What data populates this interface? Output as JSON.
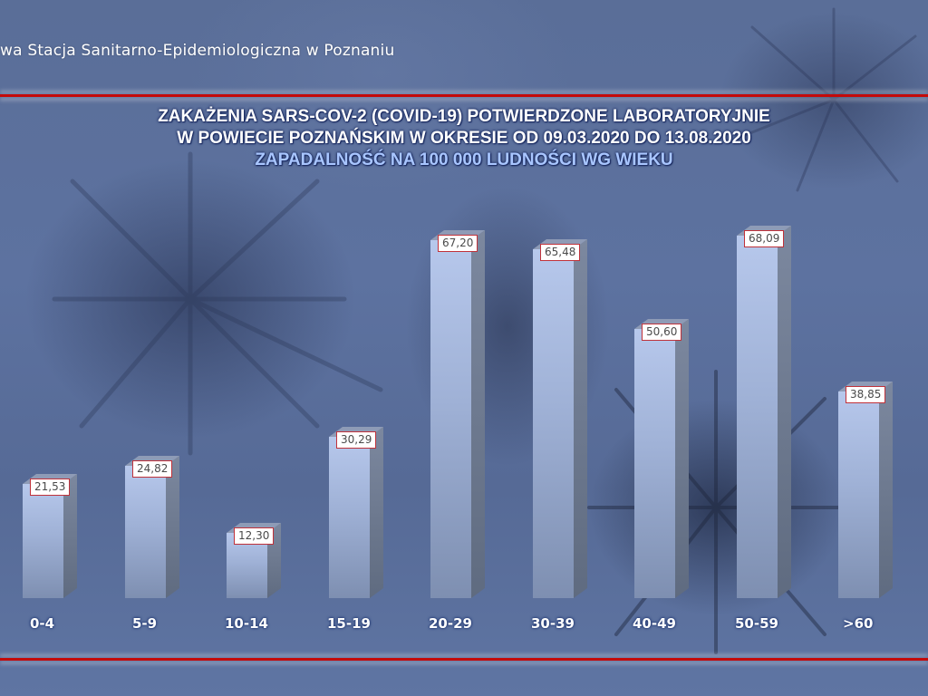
{
  "header": {
    "organization_text": "wa Stacja Sanitarno-Epidemiologiczna w Poznaniu"
  },
  "title": {
    "line1": "ZAKAŻENIA SARS-COV-2 (COVID-19) POTWIERDZONE LABORATORYJNIE",
    "line2": "W POWIECIE POZNAŃSKIM W OKRESIE OD 09.03.2020 DO 13.08.2020",
    "line3": "ZAPADALNOŚĆ NA 100 000 LUDNOŚCI WG WIEKU"
  },
  "colors": {
    "background": "#5a6e98",
    "rule": "#c40a0a",
    "bar_front": "#a9bbe0",
    "bar_side": "#6b778d",
    "label_border": "#c0323a",
    "subtitle": "#a9c6ff"
  },
  "chart_data": {
    "type": "bar",
    "title": "ZAKAŻENIA SARS-COV-2 (COVID-19) POTWIERDZONE LABORATORYJNIE W POWIECIE POZNAŃSKIM W OKRESIE OD 09.03.2020 DO 13.08.2020",
    "subtitle": "ZAPADALNOŚĆ NA 100 000 LUDNOŚCI WG WIEKU",
    "xlabel": "",
    "ylabel": "",
    "categories": [
      "0-4",
      "5-9",
      "10-14",
      "15-19",
      "20-29",
      "30-39",
      "40-49",
      "50-59",
      ">60"
    ],
    "values": [
      21.53,
      24.82,
      12.3,
      30.29,
      67.2,
      65.48,
      50.6,
      68.09,
      38.85
    ],
    "value_labels": [
      "21,53",
      "24,82",
      "12,30",
      "30,29",
      "67,20",
      "65,48",
      "50,60",
      "68,09",
      "38,85"
    ],
    "style": "3d-column",
    "grid": false,
    "legend": "none",
    "ylim": [
      0,
      70
    ]
  }
}
